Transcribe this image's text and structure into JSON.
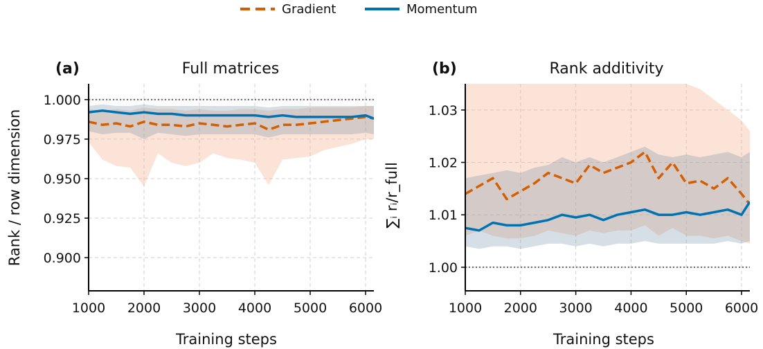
{
  "legend": [
    {
      "name": "Gradient",
      "color": "#d55e00",
      "dash": true
    },
    {
      "name": "Momentum",
      "color": "#0072b2",
      "dash": false
    }
  ],
  "chart_data": [
    {
      "type": "line",
      "panel_label": "(a)",
      "title": "Full matrices",
      "xlabel": "Training steps",
      "ylabel": "Rank / row dimension",
      "xlim": [
        1000,
        6150
      ],
      "ylim": [
        0.879,
        1.01
      ],
      "xticks": [
        1000,
        2000,
        3000,
        4000,
        5000,
        6000
      ],
      "yticks": [
        0.9,
        0.925,
        0.95,
        0.975,
        1.0
      ],
      "ytick_labels": [
        "0.900",
        "0.925",
        "0.950",
        "0.975",
        "1.000"
      ],
      "reference_line": 1.0,
      "grid": true,
      "series": [
        {
          "name": "Gradient",
          "color": "#d55e00",
          "x": [
            1000,
            1250,
            1500,
            1750,
            2000,
            2250,
            2500,
            2750,
            3000,
            3250,
            3500,
            3750,
            4000,
            4250,
            4500,
            4750,
            5000,
            5250,
            5500,
            5750,
            6000,
            6150
          ],
          "values": [
            0.986,
            0.984,
            0.985,
            0.983,
            0.986,
            0.984,
            0.984,
            0.983,
            0.985,
            0.984,
            0.983,
            0.984,
            0.985,
            0.981,
            0.984,
            0.984,
            0.985,
            0.986,
            0.987,
            0.988,
            0.989,
            0.988
          ],
          "band_lower": [
            0.973,
            0.962,
            0.958,
            0.957,
            0.945,
            0.966,
            0.96,
            0.958,
            0.96,
            0.966,
            0.963,
            0.962,
            0.96,
            0.946,
            0.962,
            0.963,
            0.964,
            0.968,
            0.97,
            0.972,
            0.975,
            0.975
          ],
          "band_upper": [
            0.994,
            0.993,
            0.994,
            0.993,
            0.995,
            0.994,
            0.994,
            0.993,
            0.994,
            0.993,
            0.993,
            0.994,
            0.994,
            0.993,
            0.994,
            0.994,
            0.995,
            0.995,
            0.995,
            0.995,
            0.996,
            0.996
          ]
        },
        {
          "name": "Momentum",
          "color": "#0072b2",
          "x": [
            1000,
            1250,
            1500,
            1750,
            2000,
            2250,
            2500,
            2750,
            3000,
            3250,
            3500,
            3750,
            4000,
            4250,
            4500,
            4750,
            5000,
            5250,
            5500,
            5750,
            6000,
            6150
          ],
          "values": [
            0.992,
            0.993,
            0.992,
            0.991,
            0.992,
            0.991,
            0.991,
            0.99,
            0.99,
            0.99,
            0.99,
            0.99,
            0.99,
            0.989,
            0.99,
            0.989,
            0.989,
            0.989,
            0.989,
            0.989,
            0.99,
            0.988
          ],
          "band_lower": [
            0.98,
            0.978,
            0.979,
            0.979,
            0.975,
            0.979,
            0.978,
            0.977,
            0.978,
            0.978,
            0.978,
            0.978,
            0.978,
            0.976,
            0.978,
            0.978,
            0.978,
            0.978,
            0.978,
            0.978,
            0.979,
            0.978
          ],
          "band_upper": [
            0.996,
            0.997,
            0.996,
            0.996,
            0.997,
            0.996,
            0.996,
            0.996,
            0.996,
            0.996,
            0.996,
            0.996,
            0.996,
            0.995,
            0.996,
            0.996,
            0.996,
            0.996,
            0.996,
            0.996,
            0.996,
            0.996
          ]
        }
      ]
    },
    {
      "type": "line",
      "panel_label": "(b)",
      "title": "Rank additivity",
      "xlabel": "Training steps",
      "ylabel": "∑ᵢ rᵢ/r_full",
      "xlim": [
        1000,
        6150
      ],
      "ylim": [
        0.9955,
        1.035
      ],
      "xticks": [
        1000,
        2000,
        3000,
        4000,
        5000,
        6000
      ],
      "yticks": [
        1.0,
        1.01,
        1.02,
        1.03
      ],
      "ytick_labels": [
        "1.00",
        "1.01",
        "1.02",
        "1.03"
      ],
      "reference_line": 1.0,
      "grid": true,
      "series": [
        {
          "name": "Gradient",
          "color": "#d55e00",
          "x": [
            1000,
            1250,
            1500,
            1750,
            2000,
            2250,
            2500,
            2750,
            3000,
            3250,
            3500,
            3750,
            4000,
            4250,
            4500,
            4750,
            5000,
            5250,
            5500,
            5750,
            6000,
            6150
          ],
          "values": [
            1.014,
            1.0155,
            1.017,
            1.013,
            1.0145,
            1.016,
            1.018,
            1.017,
            1.016,
            1.0195,
            1.018,
            1.019,
            1.02,
            1.022,
            1.017,
            1.02,
            1.016,
            1.0165,
            1.015,
            1.017,
            1.014,
            1.012
          ],
          "band_lower": [
            1.006,
            1.007,
            1.006,
            1.0055,
            1.0055,
            1.006,
            1.007,
            1.0065,
            1.006,
            1.007,
            1.0065,
            1.007,
            1.007,
            1.008,
            1.006,
            1.0075,
            1.006,
            1.006,
            1.0055,
            1.006,
            1.005,
            1.0045
          ],
          "band_upper": [
            1.035,
            1.035,
            1.035,
            1.035,
            1.035,
            1.035,
            1.035,
            1.035,
            1.035,
            1.035,
            1.035,
            1.035,
            1.035,
            1.035,
            1.035,
            1.035,
            1.035,
            1.034,
            1.032,
            1.03,
            1.028,
            1.026
          ]
        },
        {
          "name": "Momentum",
          "color": "#0072b2",
          "x": [
            1000,
            1250,
            1500,
            1750,
            2000,
            2250,
            2500,
            2750,
            3000,
            3250,
            3500,
            3750,
            4000,
            4250,
            4500,
            4750,
            5000,
            5250,
            5500,
            5750,
            6000,
            6150
          ],
          "values": [
            1.0075,
            1.007,
            1.0085,
            1.008,
            1.008,
            1.0085,
            1.009,
            1.01,
            1.0095,
            1.01,
            1.009,
            1.01,
            1.0105,
            1.011,
            1.01,
            1.01,
            1.0105,
            1.01,
            1.0105,
            1.011,
            1.01,
            1.0125
          ],
          "band_lower": [
            1.004,
            1.0035,
            1.004,
            1.004,
            1.0035,
            1.004,
            1.0045,
            1.0045,
            1.004,
            1.0045,
            1.004,
            1.0045,
            1.0045,
            1.005,
            1.0045,
            1.0045,
            1.0045,
            1.0045,
            1.0045,
            1.005,
            1.0045,
            1.005
          ],
          "band_upper": [
            1.017,
            1.0175,
            1.018,
            1.0185,
            1.018,
            1.019,
            1.0195,
            1.021,
            1.02,
            1.021,
            1.02,
            1.021,
            1.022,
            1.023,
            1.0215,
            1.021,
            1.0215,
            1.021,
            1.0215,
            1.022,
            1.021,
            1.022
          ]
        }
      ]
    }
  ]
}
